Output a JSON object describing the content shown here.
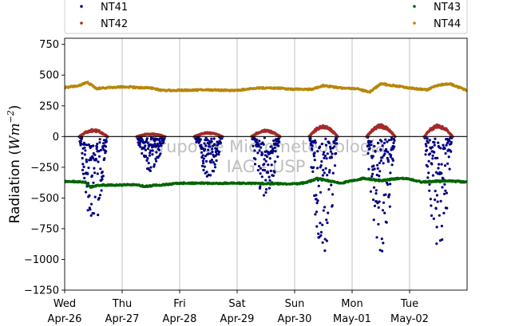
{
  "chart_data": {
    "type": "scatter",
    "title": "",
    "ylabel": "Radiation (Wm⁻²)",
    "ylabel_parts": {
      "prefix": "Radiation (",
      "math_main": "Wm",
      "math_sup": "−2",
      "suffix": ")"
    },
    "xlabel": "",
    "ylim": [
      -1250,
      800
    ],
    "yticks": [
      800,
      750,
      500,
      250,
      0,
      -250,
      -500,
      -750,
      -1000,
      -1250
    ],
    "yticks_shown": [
      750,
      500,
      250,
      0,
      -250,
      -500,
      -750,
      -1000,
      -1250
    ],
    "ytick_labels": [
      "750",
      "500",
      "250",
      "0",
      "−250",
      "−500",
      "−750",
      "−1000",
      "−1250"
    ],
    "xlim_days": [
      0,
      7
    ],
    "xticks": [
      {
        "day": 0,
        "line1": "Wed",
        "line2": "Apr-26"
      },
      {
        "day": 1,
        "line1": "Thu",
        "line2": "Apr-27"
      },
      {
        "day": 2,
        "line1": "Fri",
        "line2": "Apr-28"
      },
      {
        "day": 3,
        "line1": "Sat",
        "line2": "Apr-29"
      },
      {
        "day": 4,
        "line1": "Sun",
        "line2": "Apr-30"
      },
      {
        "day": 5,
        "line1": "Mon",
        "line2": "May-01"
      },
      {
        "day": 6,
        "line1": "Tue",
        "line2": "May-02"
      }
    ],
    "grid": "vertical",
    "zero_line": true,
    "legend_placement": "top",
    "watermark": [
      "Grupo de Micrometeorologia",
      "IAG - USP"
    ],
    "series": [
      {
        "name": "NT41",
        "color": "#000080",
        "kind": "daytime_dips",
        "days": [
          {
            "day": 0,
            "min": -720,
            "spread": 0.55
          },
          {
            "day": 1,
            "min": -280,
            "spread": 0.45
          },
          {
            "day": 2,
            "min": -330,
            "spread": 0.5
          },
          {
            "day": 3,
            "min": -540,
            "spread": 0.45
          },
          {
            "day": 4,
            "min": -960,
            "spread": 0.6
          },
          {
            "day": 5,
            "min": -970,
            "spread": 0.6
          },
          {
            "day": 6,
            "min": -940,
            "spread": 0.55
          }
        ]
      },
      {
        "name": "NT42",
        "color": "#a52a2a",
        "kind": "daytime_bumps",
        "days": [
          {
            "day": 0,
            "max": 60
          },
          {
            "day": 1,
            "max": 25
          },
          {
            "day": 2,
            "max": 35
          },
          {
            "day": 3,
            "max": 55
          },
          {
            "day": 4,
            "max": 95
          },
          {
            "day": 5,
            "max": 100
          },
          {
            "day": 6,
            "max": 100
          }
        ]
      },
      {
        "name": "NT43",
        "color": "#006400",
        "kind": "baseline",
        "points": [
          [
            0,
            -365
          ],
          [
            0.35,
            -370
          ],
          [
            0.45,
            -410
          ],
          [
            0.6,
            -395
          ],
          [
            1.0,
            -395
          ],
          [
            1.2,
            -390
          ],
          [
            1.4,
            -405
          ],
          [
            2.0,
            -380
          ],
          [
            3.0,
            -380
          ],
          [
            4.0,
            -385
          ],
          [
            4.2,
            -375
          ],
          [
            4.4,
            -340
          ],
          [
            4.6,
            -360
          ],
          [
            4.8,
            -380
          ],
          [
            5.0,
            -360
          ],
          [
            5.2,
            -340
          ],
          [
            5.5,
            -360
          ],
          [
            5.8,
            -340
          ],
          [
            6.0,
            -345
          ],
          [
            6.2,
            -370
          ],
          [
            6.6,
            -360
          ],
          [
            7.0,
            -370
          ]
        ]
      },
      {
        "name": "NT44",
        "color": "#b8860b",
        "kind": "baseline",
        "points": [
          [
            0,
            400
          ],
          [
            0.2,
            410
          ],
          [
            0.4,
            440
          ],
          [
            0.55,
            390
          ],
          [
            0.8,
            400
          ],
          [
            1.0,
            405
          ],
          [
            1.5,
            395
          ],
          [
            1.7,
            375
          ],
          [
            2.5,
            380
          ],
          [
            3.0,
            375
          ],
          [
            3.3,
            395
          ],
          [
            3.7,
            395
          ],
          [
            4.0,
            385
          ],
          [
            4.3,
            385
          ],
          [
            4.5,
            415
          ],
          [
            4.8,
            395
          ],
          [
            5.1,
            390
          ],
          [
            5.3,
            360
          ],
          [
            5.5,
            430
          ],
          [
            5.8,
            410
          ],
          [
            6.0,
            395
          ],
          [
            6.3,
            380
          ],
          [
            6.5,
            420
          ],
          [
            6.7,
            430
          ],
          [
            7.0,
            375
          ]
        ]
      }
    ]
  }
}
